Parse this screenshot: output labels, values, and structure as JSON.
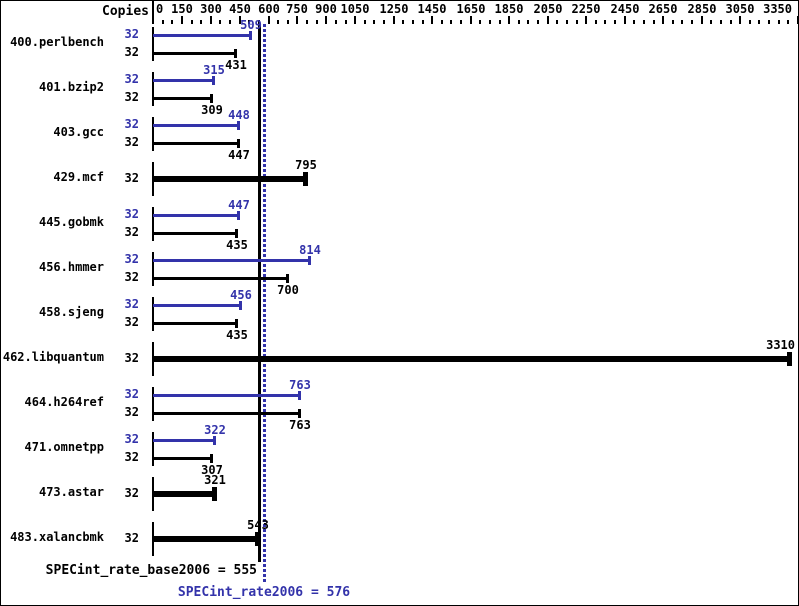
{
  "colors": {
    "peak_blue": "#3333aa",
    "base_black": "#000000",
    "background": "#ffffff"
  },
  "header": {
    "copies_label": "Copies"
  },
  "axis": {
    "min": 0,
    "max": 3350,
    "minor_tick_interval": 50,
    "labeled_ticks": [
      0,
      150,
      300,
      450,
      600,
      750,
      900,
      1050,
      1250,
      1450,
      1650,
      1850,
      2050,
      2250,
      2450,
      2650,
      2850,
      3050,
      3350
    ]
  },
  "chart_data": {
    "type": "bar",
    "orientation": "horizontal",
    "title": "",
    "series_note": "peak bars are blue, base bars are black; single bold black bar means base result shown alone",
    "benchmarks": [
      {
        "name": "400.perlbench",
        "style": "pair",
        "peak_copies": 32,
        "base_copies": 32,
        "peak": 509,
        "base": 431
      },
      {
        "name": "401.bzip2",
        "style": "pair",
        "peak_copies": 32,
        "base_copies": 32,
        "peak": 315,
        "base": 309
      },
      {
        "name": "403.gcc",
        "style": "pair",
        "peak_copies": 32,
        "base_copies": 32,
        "peak": 448,
        "base": 447
      },
      {
        "name": "429.mcf",
        "style": "single",
        "copies": 32,
        "value": 795
      },
      {
        "name": "445.gobmk",
        "style": "pair",
        "peak_copies": 32,
        "base_copies": 32,
        "peak": 447,
        "base": 435
      },
      {
        "name": "456.hmmer",
        "style": "pair",
        "peak_copies": 32,
        "base_copies": 32,
        "peak": 814,
        "base": 700
      },
      {
        "name": "458.sjeng",
        "style": "pair",
        "peak_copies": 32,
        "base_copies": 32,
        "peak": 456,
        "base": 435
      },
      {
        "name": "462.libquantum",
        "style": "single",
        "copies": 32,
        "value": 3310
      },
      {
        "name": "464.h264ref",
        "style": "pair",
        "peak_copies": 32,
        "base_copies": 32,
        "peak": 763,
        "base": 763
      },
      {
        "name": "471.omnetpp",
        "style": "pair",
        "peak_copies": 32,
        "base_copies": 32,
        "peak": 322,
        "base": 307
      },
      {
        "name": "473.astar",
        "style": "single",
        "copies": 32,
        "value": 321
      },
      {
        "name": "483.xalancbmk",
        "style": "single",
        "copies": 32,
        "value": 543
      }
    ],
    "summary": {
      "base_label": "SPECint_rate_base2006",
      "base_value": 555,
      "base_text": "SPECint_rate_base2006 = 555",
      "peak_label": "SPECint_rate2006",
      "peak_value": 576,
      "peak_text": "SPECint_rate2006 = 576"
    }
  }
}
